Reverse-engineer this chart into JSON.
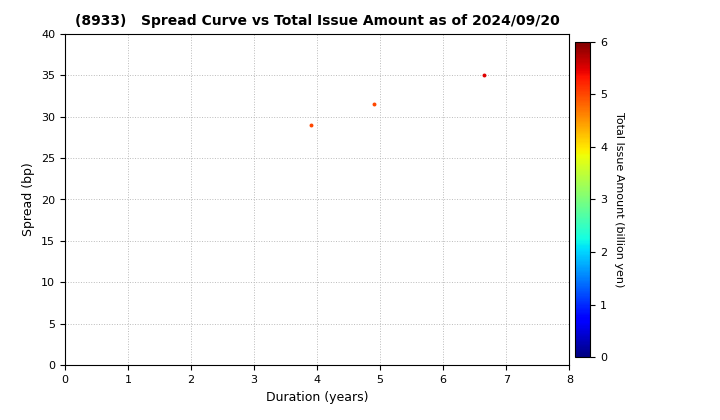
{
  "title": "(8933)   Spread Curve vs Total Issue Amount as of 2024/09/20",
  "xlabel": "Duration (years)",
  "ylabel": "Spread (bp)",
  "colorbar_label": "Total Issue Amount (billion yen)",
  "xlim": [
    0,
    8
  ],
  "ylim": [
    0,
    40
  ],
  "xticks": [
    0,
    1,
    2,
    3,
    4,
    5,
    6,
    7,
    8
  ],
  "yticks": [
    0,
    5,
    10,
    15,
    20,
    25,
    30,
    35,
    40
  ],
  "colorbar_range": [
    0,
    6
  ],
  "points": [
    {
      "duration": 3.9,
      "spread": 29.0,
      "amount": 5.0
    },
    {
      "duration": 4.9,
      "spread": 31.5,
      "amount": 5.0
    },
    {
      "duration": 6.65,
      "spread": 35.0,
      "amount": 5.5
    }
  ],
  "grid_color": "#bbbbbb",
  "background_color": "#ffffff",
  "marker_size": 8,
  "colormap": "jet"
}
